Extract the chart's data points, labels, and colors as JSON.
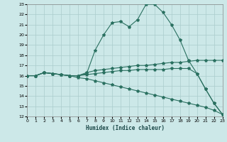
{
  "xlabel": "Humidex (Indice chaleur)",
  "background_color": "#cce8e8",
  "grid_color": "#aacccc",
  "line_color": "#2a7060",
  "xlim": [
    0,
    23
  ],
  "ylim": [
    12,
    23
  ],
  "yticks": [
    12,
    13,
    14,
    15,
    16,
    17,
    18,
    19,
    20,
    21,
    22,
    23
  ],
  "xticks": [
    0,
    1,
    2,
    3,
    4,
    5,
    6,
    7,
    8,
    9,
    10,
    11,
    12,
    13,
    14,
    15,
    16,
    17,
    18,
    19,
    20,
    21,
    22,
    23
  ],
  "line1_x": [
    0,
    1,
    2,
    3,
    4,
    5,
    6,
    7,
    8,
    9,
    10,
    11,
    12,
    13,
    14,
    15,
    16,
    17,
    18,
    19,
    20,
    21,
    22,
    23
  ],
  "line1_y": [
    16,
    16,
    16.3,
    16.2,
    16.1,
    16.0,
    16.0,
    16.2,
    18.5,
    20.0,
    21.2,
    21.3,
    20.8,
    21.5,
    23.0,
    23.0,
    22.2,
    21.0,
    19.5,
    17.5,
    16.2,
    14.7,
    13.3,
    12.2
  ],
  "line2_x": [
    0,
    1,
    2,
    3,
    4,
    5,
    6,
    7,
    8,
    9,
    10,
    11,
    12,
    13,
    14,
    15,
    16,
    17,
    18,
    19,
    20,
    21,
    22,
    23
  ],
  "line2_y": [
    16,
    16,
    16.3,
    16.2,
    16.1,
    16.0,
    16.0,
    16.3,
    16.5,
    16.6,
    16.7,
    16.8,
    16.9,
    17.0,
    17.0,
    17.1,
    17.2,
    17.3,
    17.3,
    17.4,
    17.5,
    17.5,
    17.5,
    17.5
  ],
  "line3_x": [
    0,
    1,
    2,
    3,
    4,
    5,
    6,
    7,
    8,
    9,
    10,
    11,
    12,
    13,
    14,
    15,
    16,
    17,
    18,
    19,
    20,
    21,
    22,
    23
  ],
  "line3_y": [
    16,
    16,
    16.3,
    16.2,
    16.1,
    16.0,
    15.8,
    15.7,
    15.5,
    15.3,
    15.1,
    14.9,
    14.7,
    14.5,
    14.3,
    14.1,
    13.9,
    13.7,
    13.5,
    13.3,
    13.1,
    12.9,
    12.6,
    12.2
  ],
  "line4_x": [
    0,
    1,
    2,
    3,
    4,
    5,
    6,
    7,
    8,
    9,
    10,
    11,
    12,
    13,
    14,
    15,
    16,
    17,
    18,
    19,
    20,
    21,
    22,
    23
  ],
  "line4_y": [
    16,
    16,
    16.3,
    16.2,
    16.1,
    16.0,
    16.0,
    16.1,
    16.2,
    16.3,
    16.4,
    16.5,
    16.5,
    16.6,
    16.6,
    16.6,
    16.6,
    16.7,
    16.7,
    16.7,
    16.2,
    14.7,
    13.3,
    12.2
  ]
}
